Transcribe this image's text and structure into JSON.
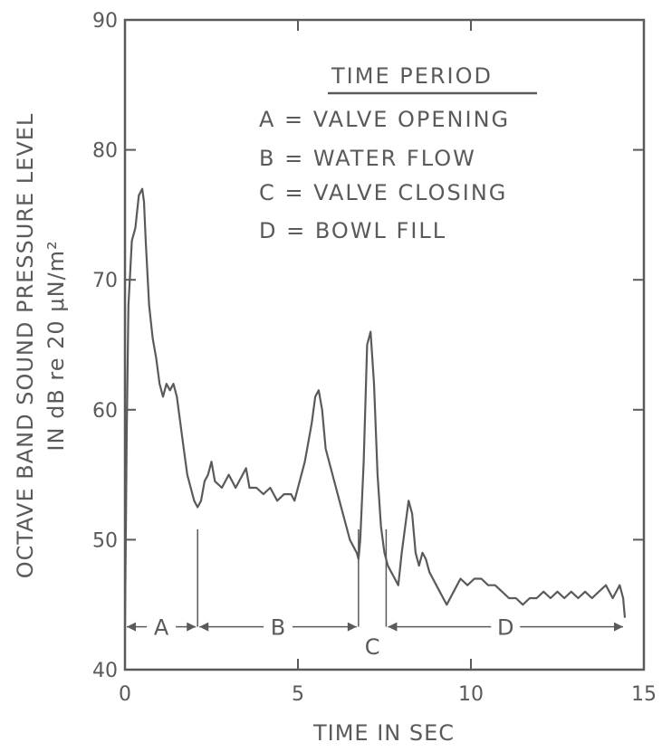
{
  "chart_data": {
    "type": "line",
    "xlabel": "TIME IN SEC",
    "ylabel_line1": "OCTAVE BAND SOUND PRESSURE LEVEL",
    "ylabel_line2": "IN dB re 20 μN/m²",
    "xlim": [
      0,
      15
    ],
    "ylim": [
      40,
      90
    ],
    "xticks": [
      0,
      5,
      10,
      15
    ],
    "yticks": [
      40,
      50,
      60,
      70,
      80,
      90
    ],
    "legend": {
      "title": "TIME PERIOD",
      "entries": [
        "A = VALVE OPENING",
        "B = WATER FLOW",
        "C = VALVE CLOSING",
        "D = BOWL FILL"
      ]
    },
    "periods": [
      {
        "label": "A",
        "start": 0,
        "end": 2.1
      },
      {
        "label": "B",
        "start": 2.1,
        "end": 6.75
      },
      {
        "label": "C",
        "start": 6.75,
        "end": 7.55
      },
      {
        "label": "D",
        "start": 7.55,
        "end": 14.45
      }
    ],
    "series": [
      {
        "x": [
          0,
          0.05,
          0.1,
          0.2,
          0.3,
          0.4,
          0.5,
          0.55,
          0.6,
          0.7,
          0.8,
          0.9,
          1.0,
          1.1,
          1.2,
          1.3,
          1.4,
          1.5,
          1.6,
          1.7,
          1.8,
          1.9,
          2.0,
          2.1,
          2.2,
          2.3,
          2.4,
          2.5,
          2.6,
          2.8,
          3.0,
          3.2,
          3.4,
          3.5,
          3.6,
          3.8,
          4.0,
          4.2,
          4.4,
          4.6,
          4.8,
          4.9,
          5.0,
          5.2,
          5.4,
          5.5,
          5.6,
          5.7,
          5.8,
          6.0,
          6.2,
          6.4,
          6.5,
          6.6,
          6.7,
          6.75,
          6.8,
          6.9,
          7.0,
          7.1,
          7.2,
          7.3,
          7.4,
          7.5,
          7.6,
          7.7,
          7.8,
          7.9,
          8.0,
          8.1,
          8.2,
          8.3,
          8.4,
          8.5,
          8.6,
          8.7,
          8.8,
          8.9,
          9.0,
          9.1,
          9.2,
          9.3,
          9.5,
          9.7,
          9.9,
          10.1,
          10.3,
          10.5,
          10.7,
          10.9,
          11.1,
          11.3,
          11.5,
          11.7,
          11.9,
          12.1,
          12.3,
          12.5,
          12.7,
          12.9,
          13.1,
          13.3,
          13.5,
          13.7,
          13.9,
          14.1,
          14.3,
          14.4,
          14.45
        ],
        "y": [
          43,
          58,
          68,
          73,
          74,
          76.5,
          77,
          76,
          73,
          68,
          65.5,
          64,
          62,
          61,
          62,
          61.5,
          62,
          61,
          59,
          57,
          55,
          54,
          53,
          52.5,
          53,
          54.5,
          55,
          56,
          54.5,
          54,
          55,
          54,
          55,
          55.5,
          54,
          54,
          53.5,
          54,
          53,
          53.5,
          53.5,
          53,
          54,
          56,
          59,
          61,
          61.5,
          60,
          57,
          55,
          53,
          51,
          50,
          49.5,
          49,
          48.5,
          50,
          56,
          65,
          66,
          62,
          55,
          51,
          49,
          48,
          47.5,
          47,
          46.5,
          49,
          51,
          53,
          52,
          49,
          48,
          49,
          48.5,
          47.5,
          47,
          46.5,
          46,
          45.5,
          45,
          46,
          47,
          46.5,
          47,
          47,
          46.5,
          46.5,
          46,
          45.5,
          45.5,
          45,
          45.5,
          45.5,
          46,
          45.5,
          46,
          45.5,
          46,
          45.5,
          46,
          45.5,
          46,
          46.5,
          45.5,
          46.5,
          45.5,
          44
        ]
      }
    ]
  }
}
